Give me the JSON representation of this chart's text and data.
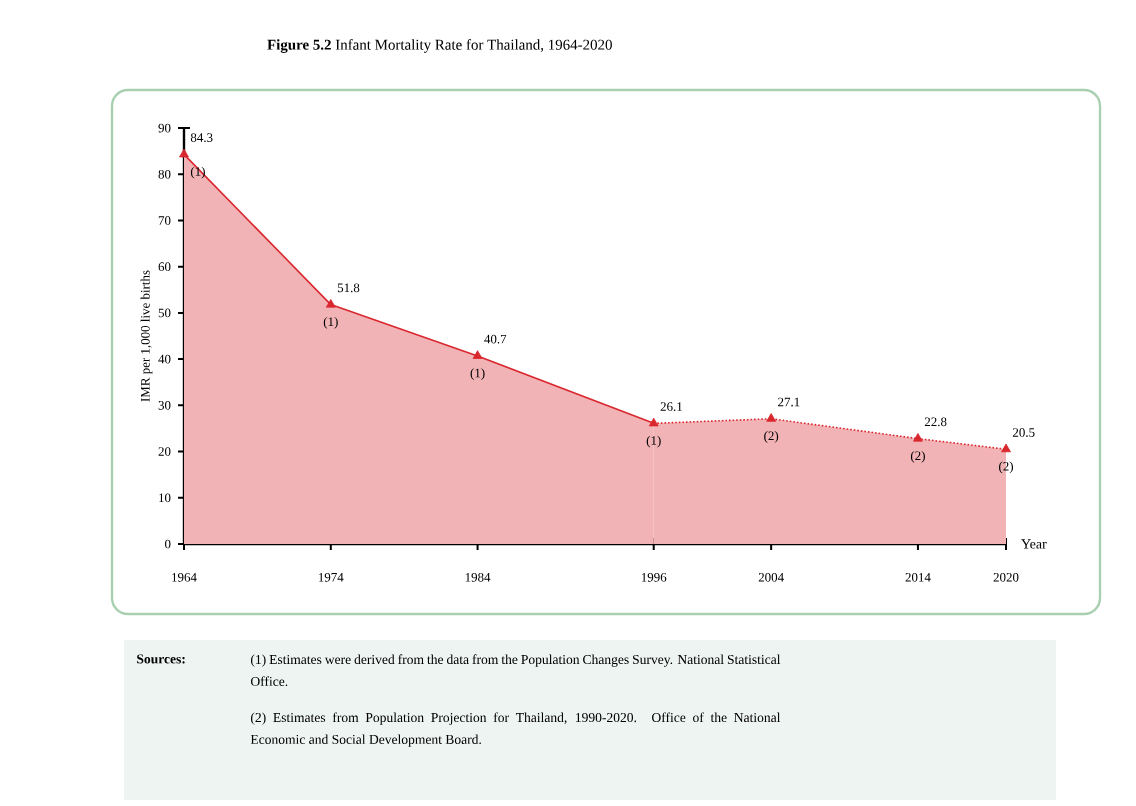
{
  "chart_data": {
    "type": "area",
    "title": "**Figure 5.2**   Infant Mortality Rate for Thailand, 1964-2020",
    "xlabel": "Year",
    "ylabel": "IMR per 1,000 live births",
    "xlim": [
      1964,
      2020
    ],
    "ylim": [
      0,
      90
    ],
    "xticks": [
      1964,
      1974,
      1984,
      1996,
      2004,
      2014,
      2020
    ],
    "yticks": [
      0,
      10,
      20,
      30,
      40,
      50,
      60,
      70,
      80,
      90
    ],
    "marker": "triangle",
    "series": [
      {
        "x": [
          1964,
          1974,
          1984,
          1996
        ],
        "values": [
          84.3,
          51.8,
          40.7,
          26.1
        ],
        "value_labels": [
          "84.3",
          "51.8",
          "40.7",
          "26.1"
        ],
        "color": "#d9272e",
        "line_style": "solid"
      },
      {
        "x": [
          1996,
          2004,
          2014,
          2020
        ],
        "values": [
          26.1,
          27.1,
          22.8,
          20.5
        ],
        "value_labels": [
          null,
          "27.1",
          "22.8",
          "20.5"
        ],
        "color": "#d9272e",
        "line_style": "dotted"
      }
    ],
    "annotations": [
      {
        "text": "(1)",
        "x": 1964,
        "y": 84.3
      },
      {
        "text": "(1)",
        "x": 1974,
        "y": 51.8
      },
      {
        "text": "(1)",
        "x": 1984,
        "y": 40.7
      },
      {
        "text": "(1)",
        "x": 1996,
        "y": 26.1
      },
      {
        "text": "(2)",
        "x": 2004,
        "y": 27.1
      },
      {
        "text": "(2)",
        "x": 2014,
        "y": 22.8
      },
      {
        "text": "(2)",
        "x": 2020,
        "y": 20.5
      },
      "**Sources:**",
      "(1) Estimates were derived from the data from the Population Changes Survey. National Statistical Office.",
      "(2) Estimates from Population Projection for Thailand, 1990-2020. Office of the National Economic and Social Development Board."
    ]
  }
}
